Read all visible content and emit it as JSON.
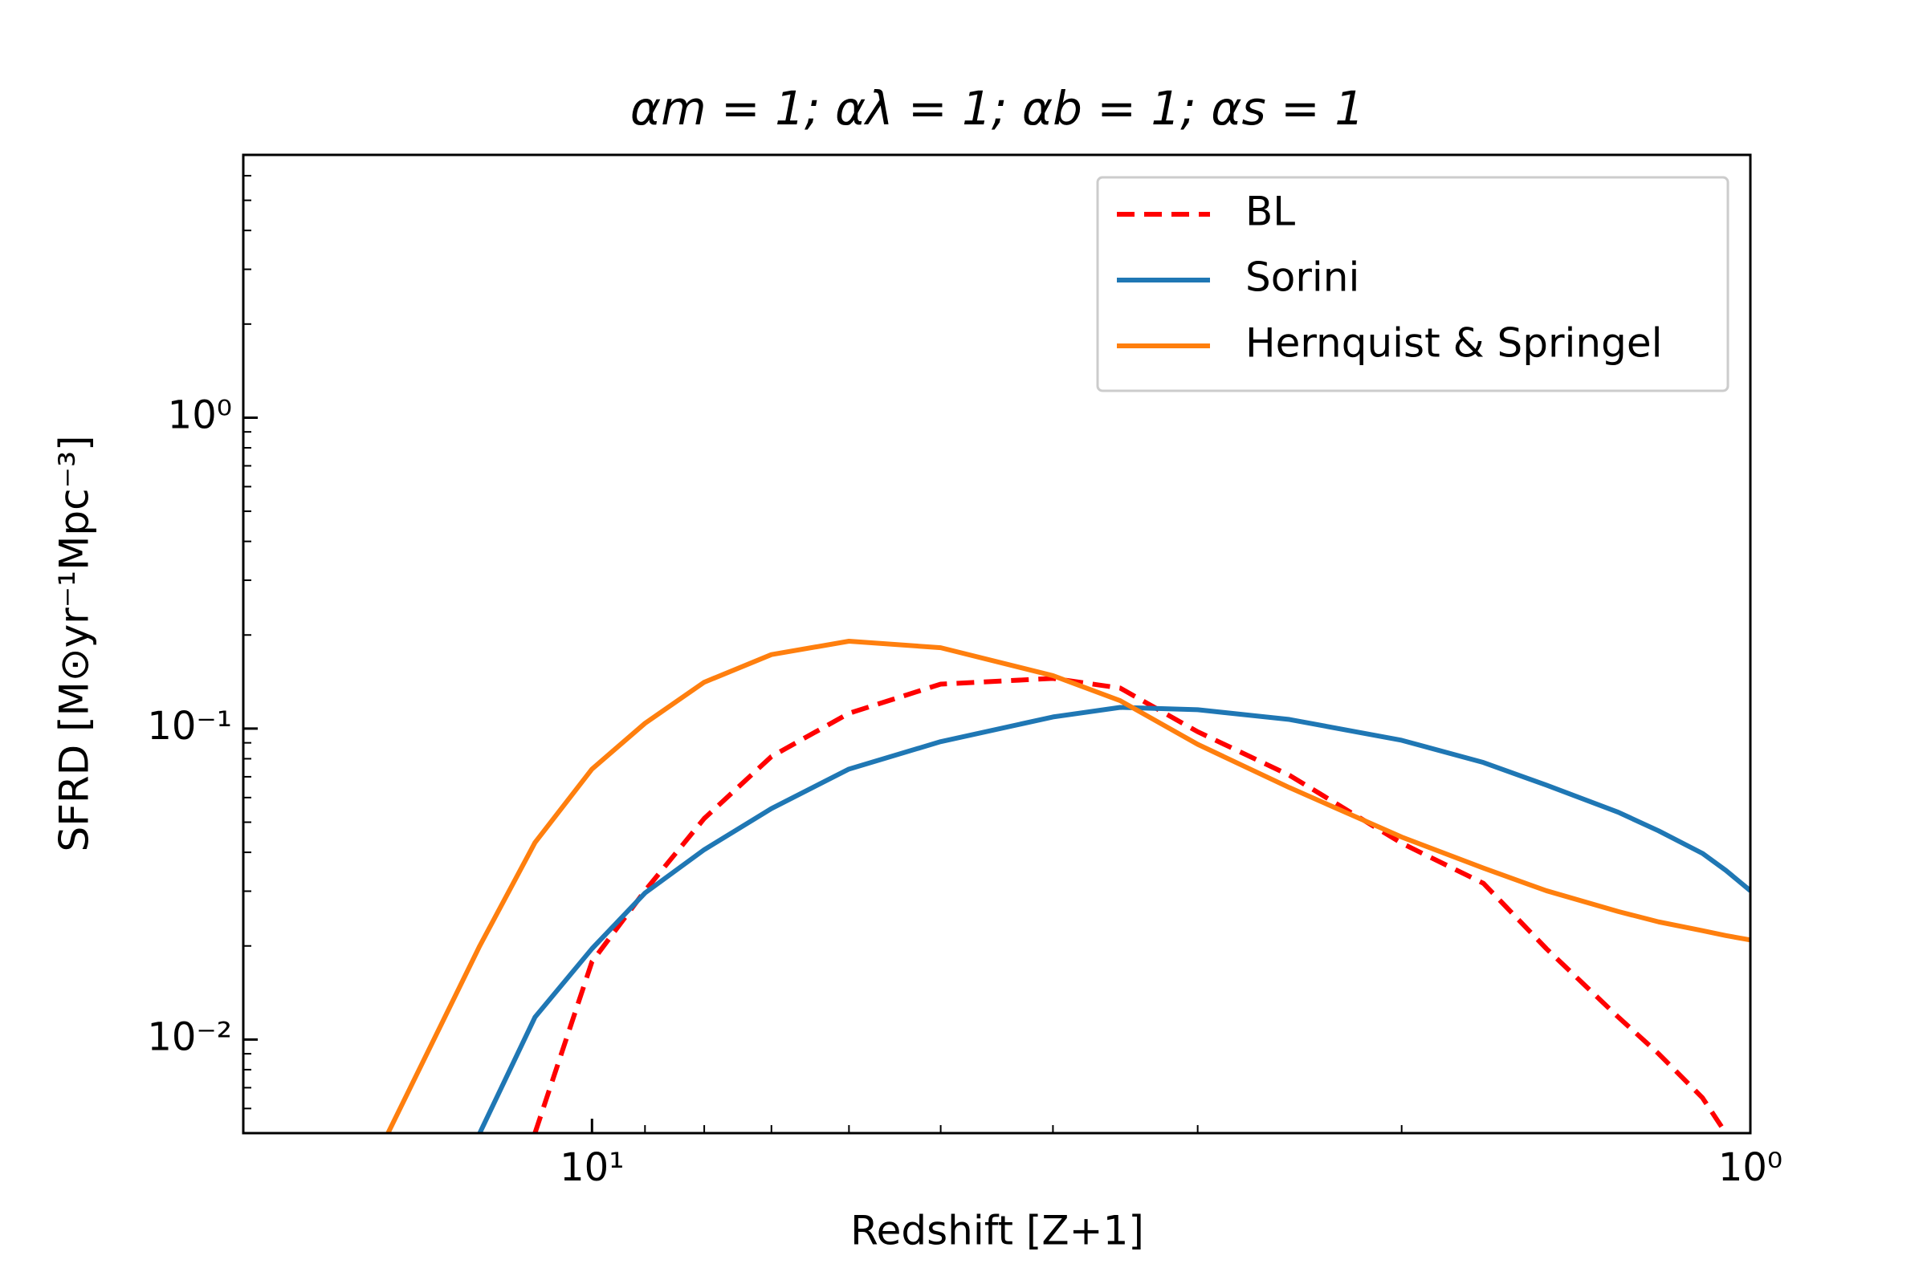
{
  "chart_data": {
    "type": "line",
    "title": "αm = 1; αλ = 1; αb = 1; αs = 1",
    "xlabel": "Redshift [Z+1]",
    "ylabel": "SFRD [M⊙yr⁻¹Mpc⁻³]",
    "xscale": "log",
    "yscale": "log",
    "xlim": [
      20,
      1
    ],
    "ylim": [
      0.005,
      7
    ],
    "xticks": [
      {
        "value": 10,
        "label": "10¹"
      },
      {
        "value": 1,
        "label": "10⁰"
      }
    ],
    "yticks": [
      {
        "value": 0.01,
        "label": "10⁻²"
      },
      {
        "value": 0.1,
        "label": "10⁻¹"
      },
      {
        "value": 1,
        "label": "10⁰"
      }
    ],
    "minor_ticks": true,
    "grid": false,
    "legend": "upper right",
    "x": [
      20,
      15,
      12.5,
      11.2,
      10,
      9,
      8,
      7,
      6,
      5,
      4,
      3.5,
      3,
      2.5,
      2,
      1.7,
      1.5,
      1.3,
      1.2,
      1.1,
      1.05,
      1.0
    ],
    "series": [
      {
        "name": "BL",
        "color": "#ff0000",
        "linestyle": "dashed",
        "values": [
          null,
          null,
          null,
          0.005,
          0.0178,
          0.0301,
          0.0514,
          0.0813,
          0.112,
          0.139,
          0.145,
          0.135,
          0.0977,
          0.0708,
          0.0428,
          0.0318,
          0.0196,
          0.0118,
          0.009,
          0.0065,
          0.005,
          null
        ]
      },
      {
        "name": "Sorini",
        "color": "#1f77b4",
        "linestyle": "solid",
        "values": [
          null,
          null,
          0.005,
          0.0118,
          0.0196,
          0.0296,
          0.0408,
          0.0553,
          0.0741,
          0.0908,
          0.109,
          0.117,
          0.115,
          0.107,
          0.0917,
          0.0778,
          0.0658,
          0.0538,
          0.0469,
          0.0397,
          0.035,
          0.0301
        ]
      },
      {
        "name": "Hernquist & Springel",
        "color": "#ff7f0e",
        "linestyle": "solid",
        "values": [
          null,
          0.005,
          0.02,
          0.043,
          0.0741,
          0.104,
          0.141,
          0.173,
          0.191,
          0.182,
          0.148,
          0.123,
          0.089,
          0.0646,
          0.0448,
          0.0356,
          0.0301,
          0.0258,
          0.0239,
          0.0224,
          0.0216,
          0.0209
        ]
      }
    ]
  }
}
